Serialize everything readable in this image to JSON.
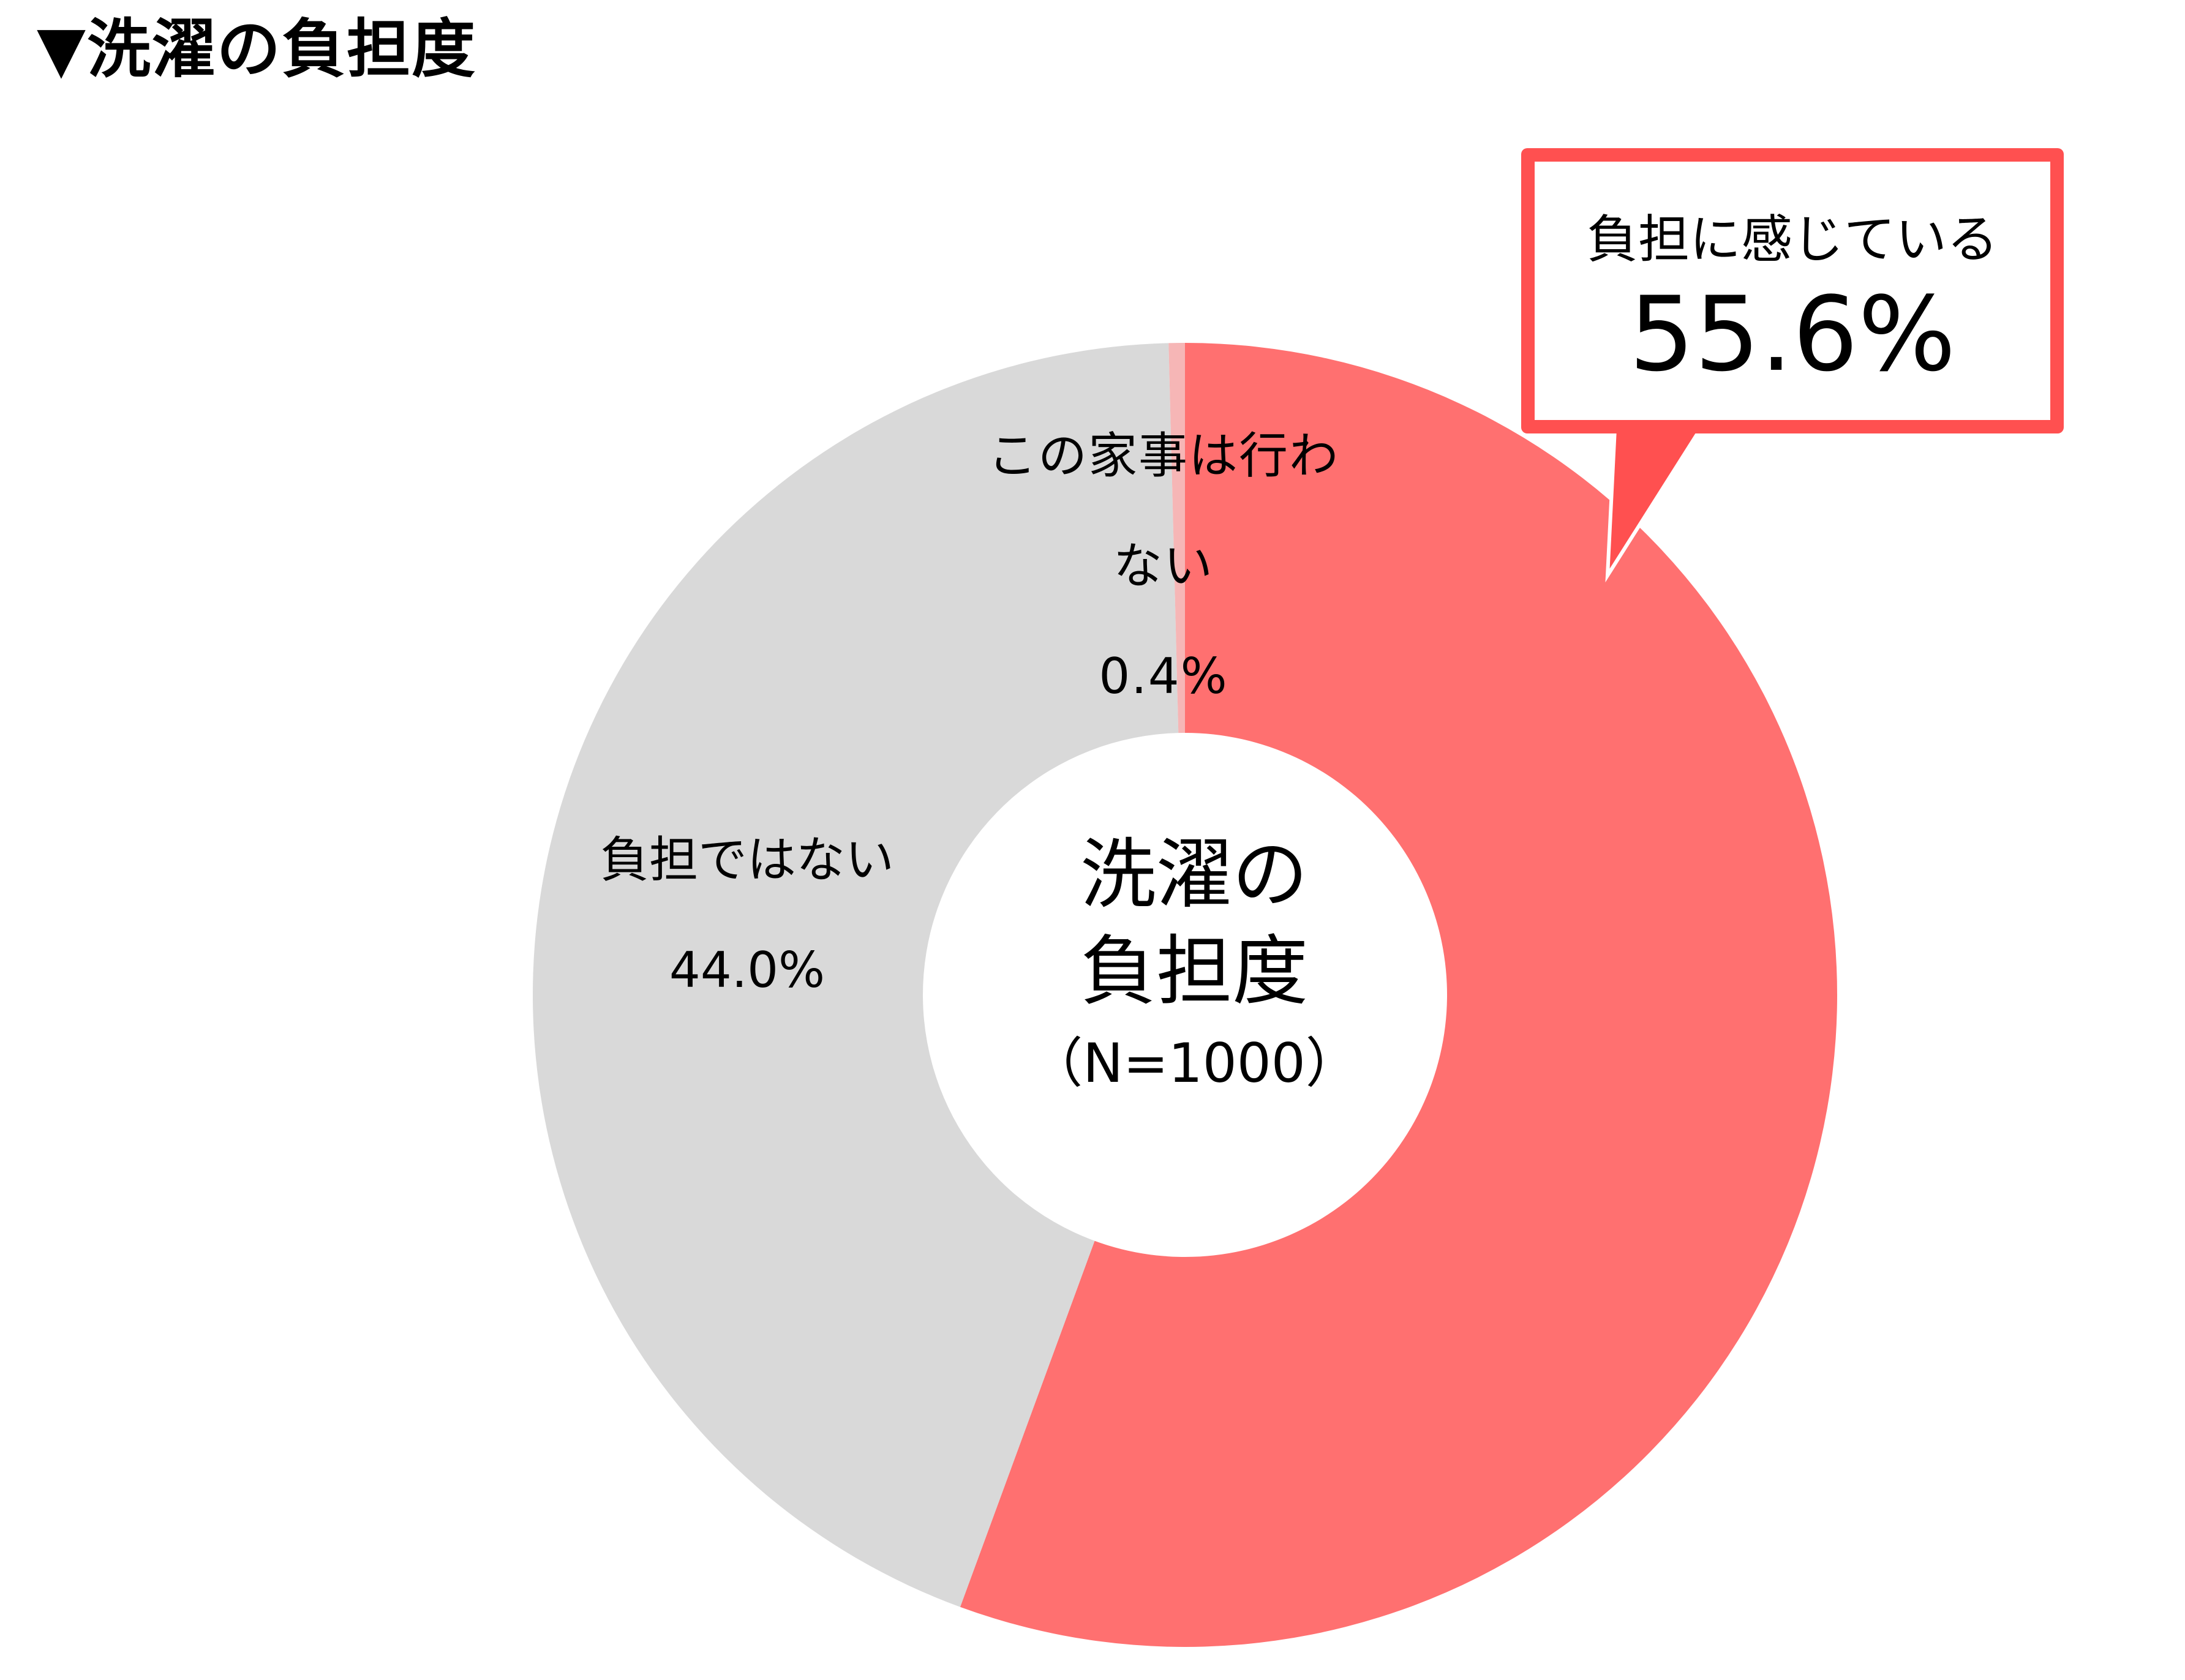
{
  "title": "▼洗濯の負担度",
  "chart_data": {
    "type": "pie",
    "style": "donut",
    "center_title": "洗濯の負担度",
    "center_note": "（N=1000）",
    "slices": [
      {
        "label": "負担に感じている",
        "value": 55.6,
        "value_label": "55.6%",
        "color": "#ff7070"
      },
      {
        "label": "負担ではない",
        "value": 44.0,
        "value_label": "44.0%",
        "color": "#d9d9d9"
      },
      {
        "label": "この家事は行わない",
        "value": 0.4,
        "value_label": "0.4%",
        "color": "#f6b6b6"
      }
    ],
    "callout": {
      "label": "負担に感じている",
      "value": "55.6%",
      "border_color": "#ff5050"
    }
  }
}
